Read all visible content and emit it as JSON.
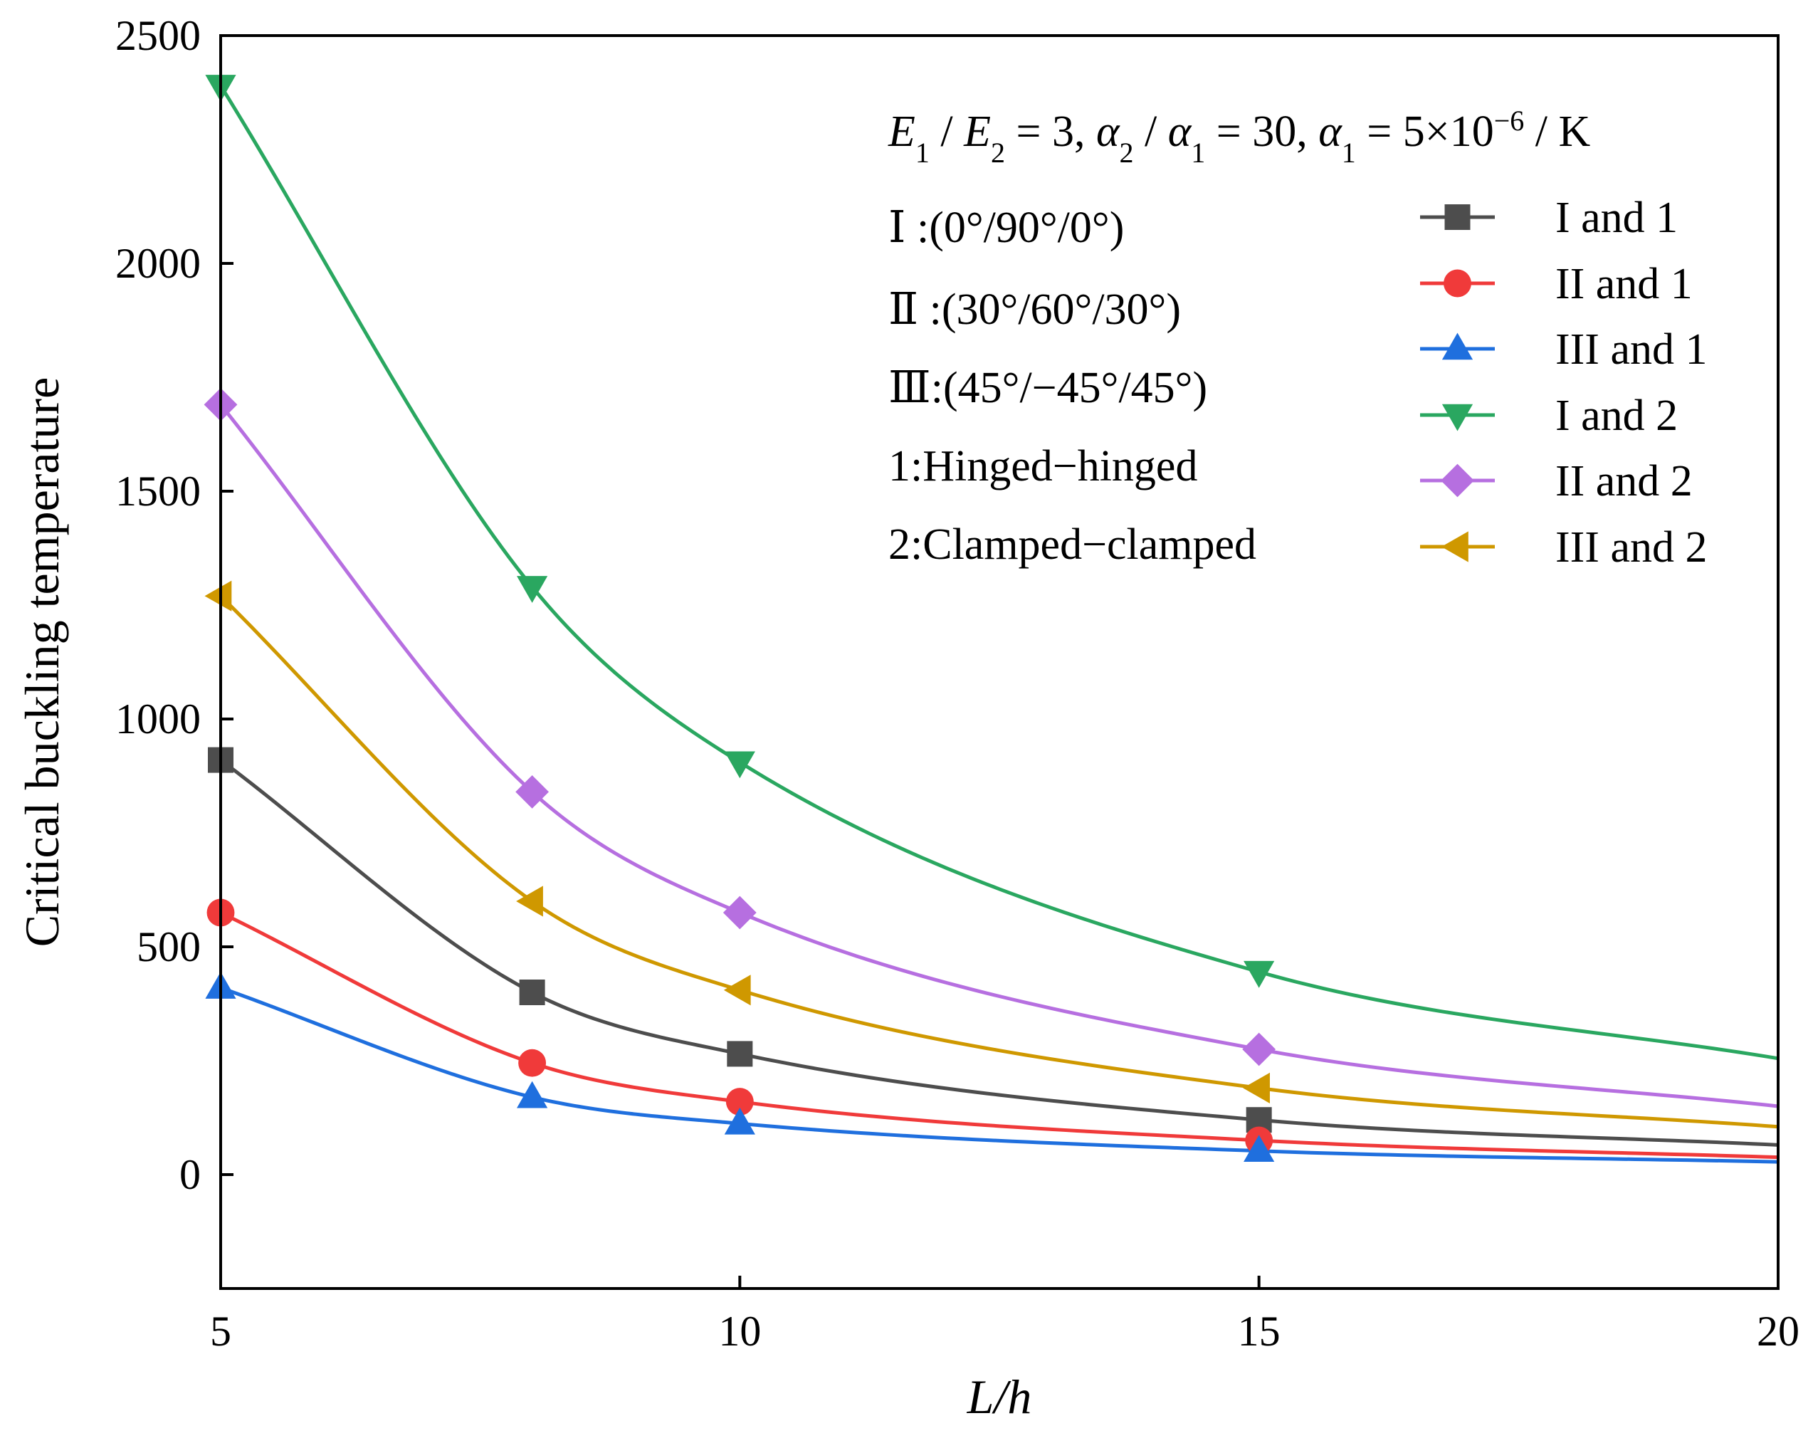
{
  "chart_data": {
    "type": "line",
    "xlabel": "L/h",
    "ylabel": "Critical buckling temperature",
    "xlim": [
      5,
      20
    ],
    "ylim": [
      -250,
      2500
    ],
    "x_ticks": [
      "5",
      "10",
      "15",
      "20"
    ],
    "y_ticks": [
      "0",
      "500",
      "1000",
      "1500",
      "2000",
      "2500"
    ],
    "params_annotation": {
      "e1": "E",
      "e1_sub": "1",
      "slash1": " / ",
      "e2": "E",
      "e2_sub": "2",
      "eq1": " = 3,  ",
      "a2": "α",
      "a2_sub": "2",
      "slash2": " / ",
      "a1": "α",
      "a1_sub": "1",
      "eq2": " = 30,  ",
      "a1b": "α",
      "a1b_sub": "1",
      "eq3": " = 5×10",
      "exp": "−6",
      "unit": " / K"
    },
    "annotations": [
      "Ⅰ :(0°/90°/0°)",
      "Ⅱ :(30°/60°/30°)",
      "Ⅲ:(45°/−45°/45°)",
      "1:Hinged−hinged",
      "2:Clamped−clamped"
    ],
    "series": [
      {
        "name": "I and 1",
        "color": "#4d4d4d",
        "marker": "square",
        "x": [
          5,
          8,
          10,
          15,
          20
        ],
        "y": [
          910,
          400,
          265,
          120,
          65
        ]
      },
      {
        "name": "II and 1",
        "color": "#f03a3a",
        "marker": "circle",
        "x": [
          5,
          8,
          10,
          15,
          20
        ],
        "y": [
          575,
          245,
          160,
          75,
          38
        ]
      },
      {
        "name": "III and 1",
        "color": "#1f6fde",
        "marker": "triangle-up",
        "x": [
          5,
          8,
          10,
          15,
          20
        ],
        "y": [
          410,
          170,
          112,
          52,
          28
        ]
      },
      {
        "name": "I and 2",
        "color": "#2aa760",
        "marker": "triangle-down",
        "x": [
          5,
          8,
          10,
          15,
          20
        ],
        "y": [
          2390,
          1290,
          905,
          445,
          255
        ]
      },
      {
        "name": "II and 2",
        "color": "#b66fe0",
        "marker": "diamond",
        "x": [
          5,
          8,
          10,
          15,
          20
        ],
        "y": [
          1690,
          840,
          575,
          275,
          150
        ]
      },
      {
        "name": "III and 2",
        "color": "#cf9800",
        "marker": "triangle-left",
        "x": [
          5,
          8,
          10,
          15,
          20
        ],
        "y": [
          1270,
          600,
          405,
          190,
          105
        ]
      }
    ]
  }
}
